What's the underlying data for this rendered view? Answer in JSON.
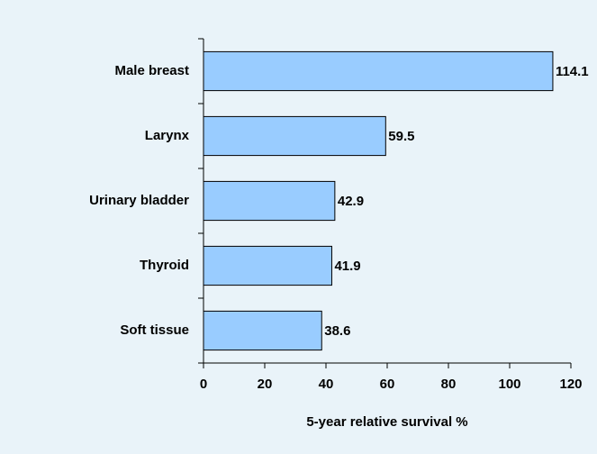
{
  "chart_data": {
    "type": "bar",
    "orientation": "horizontal",
    "x_label": "5-year relative survival %",
    "categories": [
      "Male breast",
      "Larynx",
      "Urinary bladder",
      "Thyroid",
      "Soft tissue"
    ],
    "values": [
      114.1,
      59.5,
      42.9,
      41.9,
      38.6
    ],
    "color": "#99ccff",
    "xlim": [
      0,
      120
    ],
    "xticks": [
      0,
      20,
      40,
      60,
      80,
      100,
      120
    ]
  }
}
